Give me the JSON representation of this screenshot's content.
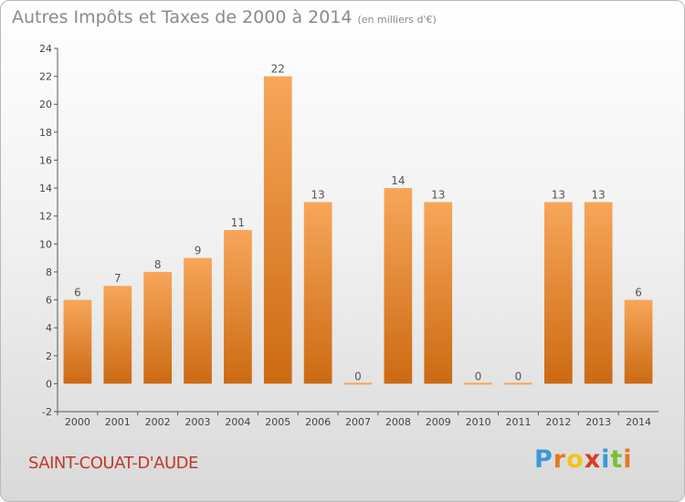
{
  "title": "Autres Impôts et Taxes de 2000 à 2014",
  "unit_note": "(en milliers d'€)",
  "place_name": "SAINT-COUAT-D'AUDE",
  "logo": {
    "letters": [
      "P",
      "r",
      "o",
      "x",
      "i",
      "t",
      "i"
    ],
    "colors": [
      "#3a9ad9",
      "#e07b1f",
      "#f0c419",
      "#d93a2b",
      "#3a9ad9",
      "#7bbf3a",
      "#e07b1f"
    ]
  },
  "colors": {
    "bar_top": "#f7a65a",
    "bar_bottom": "#cc6a12",
    "title": "#8a8a8a",
    "place": "#c0392b"
  },
  "chart_data": {
    "type": "bar",
    "title": "Autres Impôts et Taxes de 2000 à 2014",
    "subtitle": "(en milliers d'€)",
    "categories": [
      "2000",
      "2001",
      "2002",
      "2003",
      "2004",
      "2005",
      "2006",
      "2007",
      "2008",
      "2009",
      "2010",
      "2011",
      "2012",
      "2013",
      "2014"
    ],
    "values": [
      6,
      7,
      8,
      9,
      11,
      22,
      13,
      0,
      14,
      13,
      0,
      0,
      13,
      13,
      6
    ],
    "ylim": [
      -2,
      24
    ],
    "yticks": [
      -2,
      0,
      2,
      4,
      6,
      8,
      10,
      12,
      14,
      16,
      18,
      20,
      22,
      24
    ],
    "grid": false,
    "legend": "none"
  }
}
